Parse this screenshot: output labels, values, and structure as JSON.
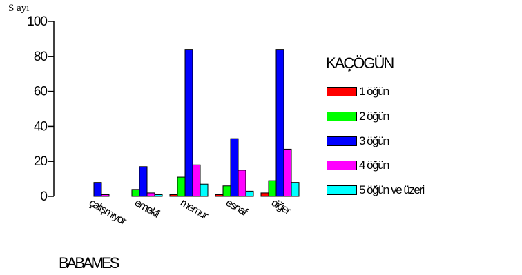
{
  "chart_data": {
    "type": "bar",
    "title": "",
    "ylabel": "S ayı",
    "xlabel": "BABAMES",
    "ylim": [
      0,
      100
    ],
    "yticks": [
      0,
      20,
      40,
      60,
      80,
      100
    ],
    "ytick_labels": [
      "0",
      "20",
      "40",
      "60",
      "80",
      "100"
    ],
    "grid": false,
    "legend_title": "KAÇÖGÜN",
    "legend_position": "right",
    "categories": [
      "çalışmıyor",
      "emekli",
      "memur",
      "esnaf",
      "diğer"
    ],
    "series": [
      {
        "name": "1 öğün",
        "color": "#ff0000",
        "values": [
          0,
          0,
          1,
          1,
          2
        ]
      },
      {
        "name": "2 öğün",
        "color": "#00ff00",
        "values": [
          0,
          4,
          11,
          6,
          9
        ]
      },
      {
        "name": "3 öğün",
        "color": "#0000ff",
        "values": [
          8,
          17,
          84,
          33,
          84
        ]
      },
      {
        "name": "4 öğün",
        "color": "#ff00ff",
        "values": [
          1,
          2,
          18,
          15,
          27
        ]
      },
      {
        "name": "5 öğün ve üzeri",
        "color": "#00ffff",
        "values": [
          0,
          1,
          7,
          3,
          8
        ]
      }
    ]
  }
}
